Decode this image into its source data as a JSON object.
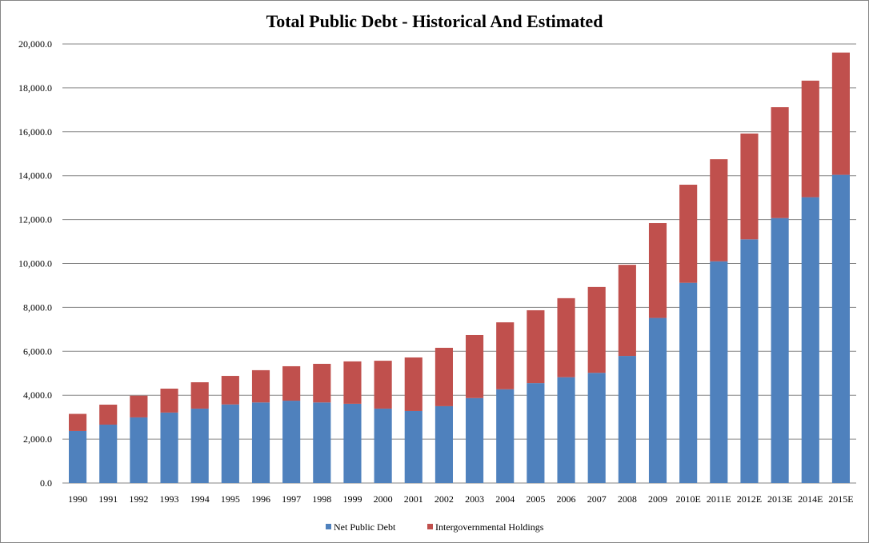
{
  "chart_data": {
    "type": "bar",
    "stacked": true,
    "title": "Total Public Debt - Historical And Estimated",
    "xlabel": "",
    "ylabel": "",
    "ylim": [
      0,
      20000
    ],
    "yticks": [
      "0.0",
      "2,000.0",
      "4,000.0",
      "6,000.0",
      "8,000.0",
      "10,000.0",
      "12,000.0",
      "14,000.0",
      "16,000.0",
      "18,000.0",
      "20,000.0"
    ],
    "grid": true,
    "legend": "bottom",
    "categories": [
      "1990",
      "1991",
      "1992",
      "1993",
      "1994",
      "1995",
      "1996",
      "1997",
      "1998",
      "1999",
      "2000",
      "2001",
      "2002",
      "2003",
      "2004",
      "2005",
      "2006",
      "2007",
      "2008",
      "2009",
      "2010E",
      "2011E",
      "2012E",
      "2013E",
      "2014E",
      "2015E"
    ],
    "series": [
      {
        "name": "Net Public Debt",
        "color": "#4F81BD",
        "values": [
          2370,
          2660,
          2990,
          3210,
          3390,
          3580,
          3670,
          3750,
          3670,
          3610,
          3390,
          3280,
          3500,
          3870,
          4270,
          4550,
          4820,
          5020,
          5790,
          7520,
          9120,
          10100,
          11100,
          12070,
          13020,
          14040
        ]
      },
      {
        "name": "Intergovernmental Holdings",
        "color": "#C0504D",
        "values": [
          780,
          910,
          990,
          1090,
          1200,
          1300,
          1470,
          1570,
          1760,
          1930,
          2180,
          2440,
          2660,
          2870,
          3050,
          3320,
          3600,
          3910,
          4150,
          4320,
          4470,
          4650,
          4820,
          5050,
          5310,
          5570
        ]
      }
    ]
  }
}
